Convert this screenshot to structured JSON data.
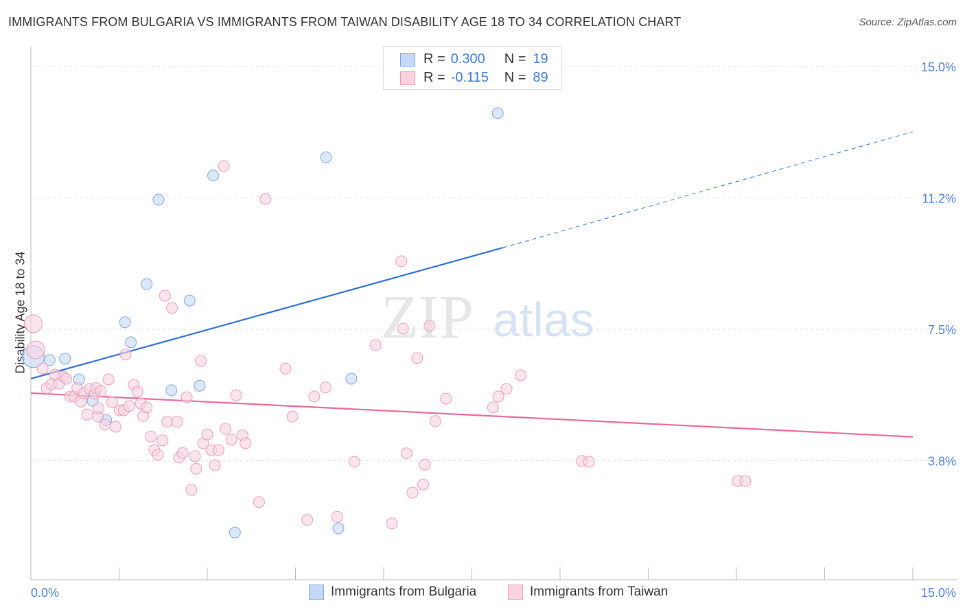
{
  "title": "IMMIGRANTS FROM BULGARIA VS IMMIGRANTS FROM TAIWAN DISABILITY AGE 18 TO 34 CORRELATION CHART",
  "source": "Source: ZipAtlas.com",
  "watermark": "ZIPatlas",
  "legend": {
    "r_label": "R =",
    "n_label": "N =",
    "series": [
      {
        "r": "0.300",
        "n": "19"
      },
      {
        "r": "-0.115",
        "n": "89"
      }
    ]
  },
  "chart_data": {
    "type": "scatter",
    "title": "IMMIGRANTS FROM BULGARIA VS IMMIGRANTS FROM TAIWAN DISABILITY AGE 18 TO 34 CORRELATION CHART",
    "xlabel": "",
    "ylabel": "Disability Age 18 to 34",
    "xlim": [
      0,
      15
    ],
    "ylim": [
      0,
      15
    ],
    "x_tick_labels": [
      "0.0%",
      "15.0%"
    ],
    "y_ticks": [
      {
        "v": 15,
        "label": "15.0%"
      },
      {
        "v": 11.25,
        "label": "11.2%"
      },
      {
        "v": 7.5,
        "label": "7.5%"
      },
      {
        "v": 3.75,
        "label": "3.8%"
      }
    ],
    "legend_position": "top-center / bottom",
    "series": [
      {
        "name": "Immigrants from Bulgaria",
        "color": "#7aa7e8",
        "fill": "#c5d9f5",
        "line_color": "#2f6fd6",
        "R": 0.3,
        "N": 19,
        "trend": {
          "x0": 0,
          "y0": 6.09,
          "x_solid_end": 8.03,
          "y_solid_end": 9.83,
          "x1": 15,
          "y1": 13.14
        },
        "points": [
          [
            0.04,
            6.72
          ],
          [
            0.32,
            6.62
          ],
          [
            0.58,
            6.66
          ],
          [
            0.82,
            6.07
          ],
          [
            1.05,
            5.46
          ],
          [
            1.28,
            4.91
          ],
          [
            1.6,
            7.7
          ],
          [
            1.7,
            7.13
          ],
          [
            1.97,
            8.79
          ],
          [
            2.17,
            11.2
          ],
          [
            2.39,
            5.76
          ],
          [
            2.7,
            8.32
          ],
          [
            2.87,
            5.89
          ],
          [
            3.1,
            11.89
          ],
          [
            3.47,
            1.7
          ],
          [
            5.02,
            12.41
          ],
          [
            5.23,
            1.82
          ],
          [
            5.45,
            6.09
          ],
          [
            7.94,
            13.67
          ]
        ]
      },
      {
        "name": "Immigrants from Taiwan",
        "color": "#ee9ab5",
        "fill": "#f9d3df",
        "line_color": "#e8689a",
        "R": -0.115,
        "N": 89,
        "trend": {
          "x0": 0,
          "y0": 5.68,
          "x1": 15,
          "y1": 4.43
        },
        "points": [
          [
            0.04,
            7.66
          ],
          [
            0.08,
            6.91
          ],
          [
            0.2,
            6.38
          ],
          [
            0.27,
            5.82
          ],
          [
            0.35,
            5.93
          ],
          [
            0.41,
            6.21
          ],
          [
            0.48,
            5.95
          ],
          [
            0.55,
            6.15
          ],
          [
            0.6,
            6.09
          ],
          [
            0.67,
            5.58
          ],
          [
            0.74,
            5.58
          ],
          [
            0.79,
            5.82
          ],
          [
            0.85,
            5.44
          ],
          [
            0.9,
            5.68
          ],
          [
            0.96,
            5.07
          ],
          [
            1.0,
            5.8
          ],
          [
            1.09,
            5.66
          ],
          [
            1.11,
            5.82
          ],
          [
            1.14,
            5.01
          ],
          [
            1.19,
            5.74
          ],
          [
            1.26,
            4.78
          ],
          [
            1.32,
            6.07
          ],
          [
            1.38,
            5.42
          ],
          [
            1.44,
            4.72
          ],
          [
            1.51,
            5.19
          ],
          [
            1.58,
            5.19
          ],
          [
            1.61,
            6.78
          ],
          [
            1.67,
            5.31
          ],
          [
            1.75,
            5.91
          ],
          [
            1.81,
            5.72
          ],
          [
            1.87,
            5.38
          ],
          [
            1.91,
            5.03
          ],
          [
            1.97,
            5.27
          ],
          [
            2.04,
            4.44
          ],
          [
            2.1,
            4.05
          ],
          [
            2.16,
            3.92
          ],
          [
            2.24,
            4.33
          ],
          [
            2.28,
            8.46
          ],
          [
            2.32,
            4.86
          ],
          [
            2.4,
            8.11
          ],
          [
            2.49,
            4.86
          ],
          [
            2.52,
            3.84
          ],
          [
            2.58,
            3.97
          ],
          [
            2.65,
            5.56
          ],
          [
            2.73,
            2.92
          ],
          [
            2.79,
            3.88
          ],
          [
            2.81,
            3.52
          ],
          [
            2.89,
            6.6
          ],
          [
            2.93,
            4.25
          ],
          [
            3.0,
            4.5
          ],
          [
            3.07,
            4.05
          ],
          [
            3.13,
            3.62
          ],
          [
            3.19,
            4.05
          ],
          [
            3.28,
            12.16
          ],
          [
            3.31,
            4.66
          ],
          [
            3.41,
            4.35
          ],
          [
            3.49,
            5.62
          ],
          [
            3.6,
            4.48
          ],
          [
            3.65,
            4.25
          ],
          [
            3.88,
            2.57
          ],
          [
            3.99,
            11.22
          ],
          [
            4.33,
            6.38
          ],
          [
            4.45,
            5.01
          ],
          [
            4.7,
            2.06
          ],
          [
            4.82,
            5.58
          ],
          [
            5.01,
            5.84
          ],
          [
            5.21,
            2.15
          ],
          [
            5.5,
            3.72
          ],
          [
            5.86,
            7.05
          ],
          [
            6.14,
            1.96
          ],
          [
            6.3,
            9.44
          ],
          [
            6.33,
            7.52
          ],
          [
            6.39,
            3.96
          ],
          [
            6.49,
            2.84
          ],
          [
            6.57,
            6.68
          ],
          [
            6.67,
            3.07
          ],
          [
            6.7,
            3.64
          ],
          [
            6.78,
            7.6
          ],
          [
            6.88,
            4.88
          ],
          [
            7.06,
            5.52
          ],
          [
            7.86,
            5.27
          ],
          [
            7.95,
            5.58
          ],
          [
            8.09,
            5.8
          ],
          [
            8.33,
            6.19
          ],
          [
            9.37,
            3.74
          ],
          [
            9.49,
            3.72
          ],
          [
            12.02,
            3.17
          ],
          [
            12.15,
            3.17
          ],
          [
            1.15,
            5.25
          ]
        ]
      }
    ]
  }
}
